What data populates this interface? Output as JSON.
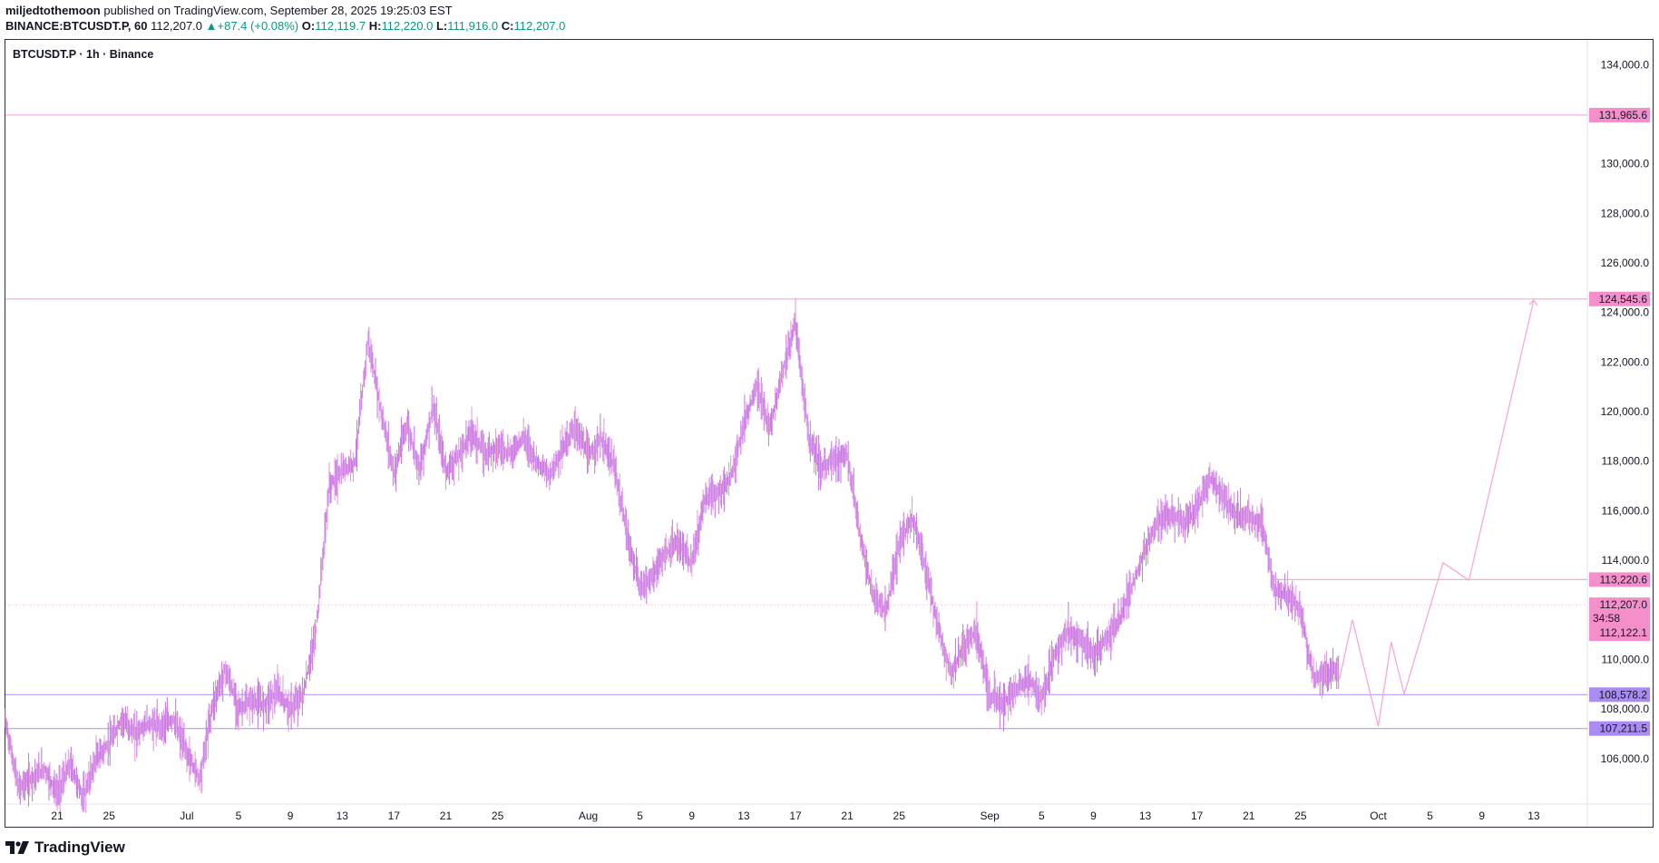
{
  "header": {
    "author": "miljedtothemoon",
    "published_text": "published on TradingView.com, September 28, 2025 19:25:03 EST",
    "symbol": "BINANCE:BTCUSDT.P, 60",
    "last_price": "112,207.0",
    "change": "+87.4 (+0.08%)",
    "ohlc": {
      "o_label": "O:",
      "o": "112,119.7",
      "h_label": "H:",
      "h": "112,220.0",
      "l_label": "L:",
      "l": "111,916.0",
      "c_label": "C:",
      "c": "112,207.0"
    }
  },
  "chart_title": "BTCUSDT.P · 1h · Binance",
  "footer": {
    "brand": "TradingView"
  },
  "colors": {
    "candle": "#c77dea",
    "candle_alt": "#e79cdc",
    "pink_line": "#f7a8d6",
    "pink_tag": "#f48fcb",
    "purple_line": "#b39bf5",
    "purple_tag": "#a98bf2",
    "up_text": "#089981"
  },
  "chart_data": {
    "type": "line",
    "y_axis": {
      "range": [
        104200,
        135000
      ],
      "ticks": [
        "106,000.0",
        "108,000.0",
        "110,000.0",
        "112,000.0",
        "114,000.0",
        "116,000.0",
        "118,000.0",
        "120,000.0",
        "122,000.0",
        "124,000.0",
        "126,000.0",
        "128,000.0",
        "130,000.0",
        "134,000.0"
      ],
      "tick_values": [
        106000,
        108000,
        110000,
        112000,
        114000,
        116000,
        118000,
        120000,
        122000,
        124000,
        126000,
        128000,
        130000,
        134000
      ]
    },
    "x_axis": {
      "range": [
        "2025-06-17",
        "2025-10-17"
      ],
      "ticks": [
        {
          "label": "21",
          "date": "2025-06-21"
        },
        {
          "label": "25",
          "date": "2025-06-25"
        },
        {
          "label": "Jul",
          "date": "2025-07-01"
        },
        {
          "label": "5",
          "date": "2025-07-05"
        },
        {
          "label": "9",
          "date": "2025-07-09"
        },
        {
          "label": "13",
          "date": "2025-07-13"
        },
        {
          "label": "17",
          "date": "2025-07-17"
        },
        {
          "label": "21",
          "date": "2025-07-21"
        },
        {
          "label": "25",
          "date": "2025-07-25"
        },
        {
          "label": "Aug",
          "date": "2025-08-01"
        },
        {
          "label": "5",
          "date": "2025-08-05"
        },
        {
          "label": "9",
          "date": "2025-08-09"
        },
        {
          "label": "13",
          "date": "2025-08-13"
        },
        {
          "label": "17",
          "date": "2025-08-17"
        },
        {
          "label": "21",
          "date": "2025-08-21"
        },
        {
          "label": "25",
          "date": "2025-08-25"
        },
        {
          "label": "Sep",
          "date": "2025-09-01"
        },
        {
          "label": "5",
          "date": "2025-09-05"
        },
        {
          "label": "9",
          "date": "2025-09-09"
        },
        {
          "label": "13",
          "date": "2025-09-13"
        },
        {
          "label": "17",
          "date": "2025-09-17"
        },
        {
          "label": "21",
          "date": "2025-09-21"
        },
        {
          "label": "25",
          "date": "2025-09-25"
        },
        {
          "label": "Oct",
          "date": "2025-10-01"
        },
        {
          "label": "5",
          "date": "2025-10-05"
        },
        {
          "label": "9",
          "date": "2025-10-09"
        },
        {
          "label": "13",
          "date": "2025-10-13"
        }
      ]
    },
    "price_series": [
      [
        "2025-06-17",
        107500
      ],
      [
        "2025-06-18",
        104800
      ],
      [
        "2025-06-19",
        105200
      ],
      [
        "2025-06-20",
        105600
      ],
      [
        "2025-06-21",
        104600
      ],
      [
        "2025-06-22",
        105800
      ],
      [
        "2025-06-23",
        104400
      ],
      [
        "2025-06-24",
        106000
      ],
      [
        "2025-06-25",
        106600
      ],
      [
        "2025-06-26",
        107600
      ],
      [
        "2025-06-27",
        107000
      ],
      [
        "2025-06-28",
        107400
      ],
      [
        "2025-06-29",
        107300
      ],
      [
        "2025-06-30",
        107600
      ],
      [
        "2025-07-01",
        106200
      ],
      [
        "2025-07-02",
        105200
      ],
      [
        "2025-07-03",
        108200
      ],
      [
        "2025-07-04",
        109600
      ],
      [
        "2025-07-05",
        108000
      ],
      [
        "2025-07-06",
        108300
      ],
      [
        "2025-07-07",
        108200
      ],
      [
        "2025-07-08",
        108700
      ],
      [
        "2025-07-09",
        108000
      ],
      [
        "2025-07-10",
        108600
      ],
      [
        "2025-07-11",
        111200
      ],
      [
        "2025-07-12",
        117000
      ],
      [
        "2025-07-13",
        117600
      ],
      [
        "2025-07-14",
        118000
      ],
      [
        "2025-07-15",
        122900
      ],
      [
        "2025-07-16",
        120000
      ],
      [
        "2025-07-17",
        117500
      ],
      [
        "2025-07-18",
        119500
      ],
      [
        "2025-07-19",
        117700
      ],
      [
        "2025-07-20",
        120200
      ],
      [
        "2025-07-21",
        117600
      ],
      [
        "2025-07-22",
        118200
      ],
      [
        "2025-07-23",
        119200
      ],
      [
        "2025-07-24",
        118300
      ],
      [
        "2025-07-25",
        118600
      ],
      [
        "2025-07-26",
        118300
      ],
      [
        "2025-07-27",
        119000
      ],
      [
        "2025-07-28",
        118000
      ],
      [
        "2025-07-29",
        117400
      ],
      [
        "2025-07-30",
        118500
      ],
      [
        "2025-07-31",
        119400
      ],
      [
        "2025-08-01",
        118200
      ],
      [
        "2025-08-02",
        118900
      ],
      [
        "2025-08-03",
        117800
      ],
      [
        "2025-08-04",
        115000
      ],
      [
        "2025-08-05",
        112900
      ],
      [
        "2025-08-06",
        113400
      ],
      [
        "2025-08-07",
        114300
      ],
      [
        "2025-08-08",
        114700
      ],
      [
        "2025-08-09",
        113800
      ],
      [
        "2025-08-10",
        116500
      ],
      [
        "2025-08-11",
        116700
      ],
      [
        "2025-08-12",
        117300
      ],
      [
        "2025-08-13",
        119500
      ],
      [
        "2025-08-14",
        121000
      ],
      [
        "2025-08-15",
        119300
      ],
      [
        "2025-08-16",
        121600
      ],
      [
        "2025-08-17",
        123600
      ],
      [
        "2025-08-18",
        119000
      ],
      [
        "2025-08-19",
        117700
      ],
      [
        "2025-08-20",
        118100
      ],
      [
        "2025-08-21",
        118200
      ],
      [
        "2025-08-22",
        115000
      ],
      [
        "2025-08-23",
        112500
      ],
      [
        "2025-08-24",
        111900
      ],
      [
        "2025-08-25",
        114600
      ],
      [
        "2025-08-26",
        115800
      ],
      [
        "2025-08-27",
        113800
      ],
      [
        "2025-08-28",
        111300
      ],
      [
        "2025-08-29",
        109400
      ],
      [
        "2025-08-30",
        110500
      ],
      [
        "2025-08-31",
        111200
      ],
      [
        "2025-09-01",
        108500
      ],
      [
        "2025-09-02",
        108200
      ],
      [
        "2025-09-03",
        108800
      ],
      [
        "2025-09-04",
        109200
      ],
      [
        "2025-09-05",
        108400
      ],
      [
        "2025-09-06",
        110200
      ],
      [
        "2025-09-07",
        111200
      ],
      [
        "2025-09-08",
        110800
      ],
      [
        "2025-09-09",
        110200
      ],
      [
        "2025-09-10",
        110800
      ],
      [
        "2025-09-11",
        111600
      ],
      [
        "2025-09-12",
        113000
      ],
      [
        "2025-09-13",
        114400
      ],
      [
        "2025-09-14",
        115700
      ],
      [
        "2025-09-15",
        115800
      ],
      [
        "2025-09-16",
        115500
      ],
      [
        "2025-09-17",
        116000
      ],
      [
        "2025-09-18",
        117300
      ],
      [
        "2025-09-19",
        116600
      ],
      [
        "2025-09-20",
        115800
      ],
      [
        "2025-09-21",
        115800
      ],
      [
        "2025-09-22",
        115500
      ],
      [
        "2025-09-23",
        112800
      ],
      [
        "2025-09-24",
        112600
      ],
      [
        "2025-09-25",
        112000
      ],
      [
        "2025-09-26",
        109200
      ],
      [
        "2025-09-27",
        109400
      ],
      [
        "2025-09-28",
        109600
      ]
    ],
    "projection_path": [
      [
        "2025-09-28",
        109200
      ],
      [
        "2025-09-29",
        111600
      ],
      [
        "2025-10-01",
        107300
      ],
      [
        "2025-10-02",
        110700
      ],
      [
        "2025-10-03",
        108600
      ],
      [
        "2025-10-06",
        113900
      ],
      [
        "2025-10-08",
        113200
      ],
      [
        "2025-10-13",
        124500
      ]
    ],
    "horizontal_lines": [
      {
        "value": 131965.6,
        "label": "131,965.6",
        "style": "pink",
        "from": "2025-06-17"
      },
      {
        "value": 124545.6,
        "label": "124,545.6",
        "style": "pink",
        "from": "2025-06-17"
      },
      {
        "value": 113220.6,
        "label": "113,220.6",
        "style": "pink",
        "from": "2025-09-23"
      },
      {
        "value": 108578.2,
        "label": "108,578.2",
        "style": "purple",
        "from": "2025-06-17"
      },
      {
        "value": 107211.5,
        "label": "107,211.5",
        "style": "purple",
        "from": "2025-06-17"
      }
    ],
    "current_price": {
      "value": 112207.0,
      "label": "112,207.0",
      "countdown": "34:58"
    },
    "secondary_price": {
      "value": 112122.1,
      "label": "112,122.1"
    },
    "grid": false
  }
}
